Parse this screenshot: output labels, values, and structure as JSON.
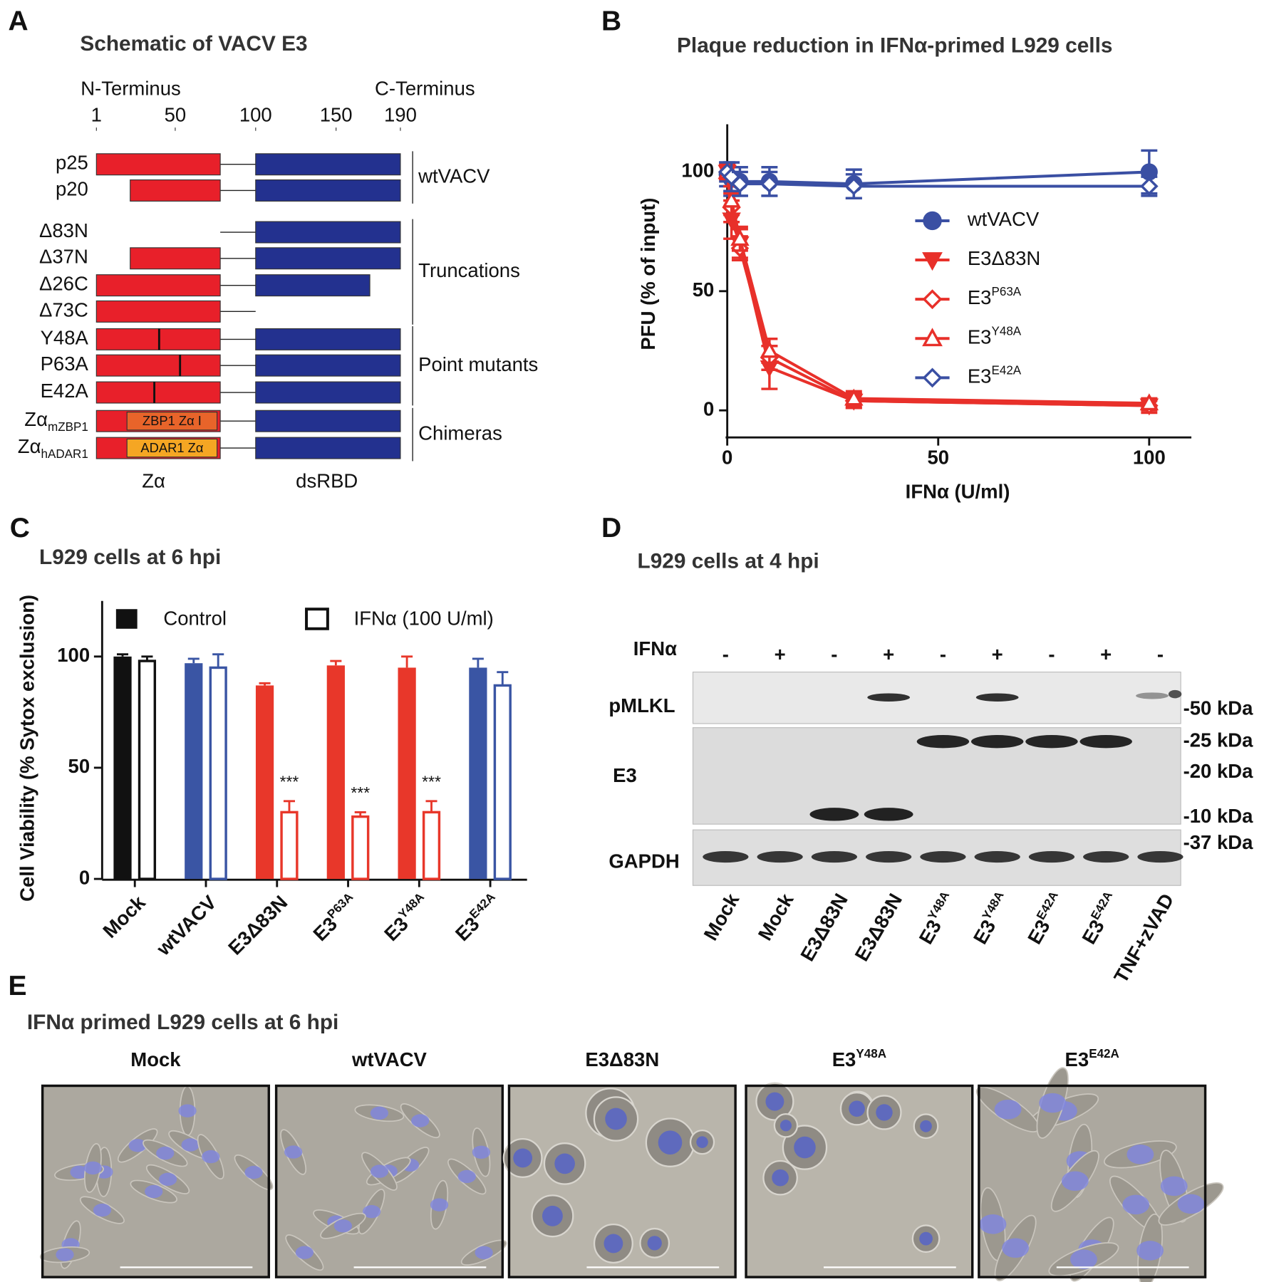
{
  "panel_a": {
    "label": "A",
    "title": "Schematic of VACV E3",
    "n_terminus": "N-Terminus",
    "c_terminus": "C-Terminus",
    "xlim": [
      1,
      190
    ],
    "xticks": [
      1,
      50,
      100,
      150,
      190
    ],
    "zalpha_color": "#e8202a",
    "dsrbd_color": "#23318f",
    "constructs": [
      {
        "name": "p25",
        "zalpha": [
          1,
          78
        ],
        "linker": [
          78,
          100
        ],
        "dsrbd": [
          100,
          190
        ]
      },
      {
        "name": "p20",
        "zalpha": [
          22,
          78
        ],
        "linker": [
          78,
          100
        ],
        "dsrbd": [
          100,
          190
        ]
      },
      {
        "name": "Δ83N",
        "linker": [
          78,
          100
        ],
        "dsrbd": [
          100,
          190
        ]
      },
      {
        "name": "Δ37N",
        "zalpha": [
          22,
          78
        ],
        "linker": [
          78,
          100
        ],
        "dsrbd": [
          100,
          190
        ]
      },
      {
        "name": "Δ26C",
        "zalpha": [
          1,
          78
        ],
        "linker": [
          78,
          100
        ],
        "dsrbd": [
          100,
          171
        ]
      },
      {
        "name": "Δ73C",
        "zalpha": [
          1,
          78
        ],
        "linker": [
          78,
          100
        ]
      },
      {
        "name": "Y48A",
        "zalpha": [
          1,
          78
        ],
        "mutation": 40,
        "linker": [
          78,
          100
        ],
        "dsrbd": [
          100,
          190
        ]
      },
      {
        "name": "P63A",
        "zalpha": [
          1,
          78
        ],
        "mutation": 53,
        "linker": [
          78,
          100
        ],
        "dsrbd": [
          100,
          190
        ]
      },
      {
        "name": "E42A",
        "zalpha": [
          1,
          78
        ],
        "mutation": 37,
        "linker": [
          78,
          100
        ],
        "dsrbd": [
          100,
          190
        ]
      },
      {
        "name": "Zα",
        "name_sub": "mZBP1",
        "zalpha": [
          1,
          78
        ],
        "insert": [
          20,
          76
        ],
        "insert_label": "ZBP1 Zα I",
        "insert_color": "#e8642a",
        "linker": [
          78,
          100
        ],
        "dsrbd": [
          100,
          190
        ]
      },
      {
        "name": "Zα",
        "name_sub": "hADAR1",
        "zalpha": [
          1,
          78
        ],
        "insert": [
          20,
          76
        ],
        "insert_label": "ADAR1 Zα",
        "insert_color": "#f5a623",
        "linker": [
          78,
          100
        ],
        "dsrbd": [
          100,
          190
        ]
      }
    ],
    "groups": [
      {
        "label": "wtVACV",
        "rows": [
          0,
          1
        ]
      },
      {
        "label": "Truncations",
        "rows": [
          2,
          5
        ]
      },
      {
        "label": "Point mutants",
        "rows": [
          6,
          8
        ]
      },
      {
        "label": "Chimeras",
        "rows": [
          9,
          10
        ]
      }
    ],
    "domain_labels": [
      "Zα",
      "dsRBD"
    ]
  },
  "chart_data": [
    {
      "type": "line",
      "label": "B",
      "title": "Plaque reduction in IFNα-primed L929 cells",
      "x_label": "IFNα (U/ml)",
      "y_label": "PFU (% of input)",
      "x": [
        0,
        1,
        3,
        10,
        30,
        100
      ],
      "xlim": [
        0,
        110
      ],
      "xticks": [
        0,
        50,
        100
      ],
      "ylim": [
        -11,
        120
      ],
      "yticks": [
        0,
        50,
        100
      ],
      "series": [
        {
          "name": "wtVACV",
          "color": "#3a4fa3",
          "marker": "circle",
          "filled": true,
          "values": [
            99,
            97,
            96,
            96,
            95,
            100
          ],
          "errors": [
            5,
            7,
            6,
            6,
            6,
            9
          ]
        },
        {
          "name": "E3Δ83N",
          "color": "#e8302a",
          "marker": "triangle-down",
          "filled": true,
          "values": [
            100,
            80,
            70,
            18,
            4,
            2
          ],
          "errors": [
            3,
            8,
            6,
            9,
            3,
            3
          ]
        },
        {
          "name": "E3",
          "name_sup": "P63A",
          "color": "#e8302a",
          "marker": "diamond",
          "filled": false,
          "values": [
            100,
            85,
            68,
            22,
            4,
            2
          ],
          "errors": [
            3,
            6,
            5,
            5,
            3,
            2
          ]
        },
        {
          "name": "E3",
          "name_sup": "Y48A",
          "color": "#e8302a",
          "marker": "triangle-up",
          "filled": false,
          "values": [
            100,
            88,
            72,
            25,
            5,
            3
          ],
          "errors": [
            3,
            6,
            5,
            5,
            3,
            2
          ]
        },
        {
          "name": "E3",
          "name_sup": "E42A",
          "color": "#3a4fa3",
          "marker": "diamond",
          "filled": false,
          "values": [
            100,
            98,
            95,
            95,
            94,
            94
          ],
          "errors": [
            4,
            6,
            5,
            5,
            5,
            4
          ]
        }
      ]
    },
    {
      "type": "bar",
      "label": "C",
      "title": "L929 cells at 6 hpi",
      "y_label": "Cell Viability (% Sytox exclusion)",
      "categories": [
        "Mock",
        "wtVACV",
        "E3Δ83N",
        "E3",
        "E3",
        "E3"
      ],
      "category_sups": [
        null,
        null,
        null,
        "P63A",
        "Y48A",
        "E42A"
      ],
      "category_colors": [
        "#111111",
        "#3a55a4",
        "#e8372a",
        "#e8372a",
        "#e8372a",
        "#3a55a4"
      ],
      "ylim": [
        0,
        125
      ],
      "yticks": [
        0,
        50,
        100
      ],
      "series": [
        {
          "name": "Control",
          "filled": true,
          "values": [
            100,
            97,
            87,
            96,
            95,
            95
          ],
          "errors": [
            1,
            2,
            1,
            2,
            5,
            4
          ]
        },
        {
          "name": "IFNα (100 U/ml)",
          "filled": false,
          "values": [
            98,
            95,
            30,
            28,
            30,
            87
          ],
          "errors": [
            2,
            6,
            5,
            2,
            5,
            6
          ]
        }
      ],
      "annotations": [
        {
          "text": "***",
          "series": 1,
          "category": 2
        },
        {
          "text": "***",
          "series": 1,
          "category": 3
        },
        {
          "text": "***",
          "series": 1,
          "category": 4
        }
      ]
    }
  ],
  "panel_d": {
    "label": "D",
    "title": "L929 cells at 4 hpi",
    "treatment_label": "IFNα",
    "treatment_signs": [
      "-",
      "+",
      "-",
      "+",
      "-",
      "+",
      "-",
      "+",
      "-"
    ],
    "rows": [
      "pMLKL",
      "E3",
      "GAPDH"
    ],
    "markers": [
      "-50 kDa",
      "-25 kDa",
      "-20 kDa",
      "-10 kDa",
      "-37 kDa"
    ],
    "lanes": [
      {
        "name": "Mock"
      },
      {
        "name": "Mock"
      },
      {
        "name": "E3Δ83N"
      },
      {
        "name": "E3Δ83N"
      },
      {
        "name": "E3",
        "sup": "Y48A"
      },
      {
        "name": "E3",
        "sup": "Y48A"
      },
      {
        "name": "E3",
        "sup": "E42A"
      },
      {
        "name": "E3",
        "sup": "E42A"
      },
      {
        "name": "TNF+zVAD"
      }
    ]
  },
  "panel_e": {
    "label": "E",
    "title": "IFNα primed L929 cells at 6 hpi",
    "images": [
      {
        "name": "Mock"
      },
      {
        "name": "wtVACV"
      },
      {
        "name": "E3Δ83N"
      },
      {
        "name": "E3",
        "sup": "Y48A"
      },
      {
        "name": "E3",
        "sup": "E42A"
      }
    ]
  }
}
